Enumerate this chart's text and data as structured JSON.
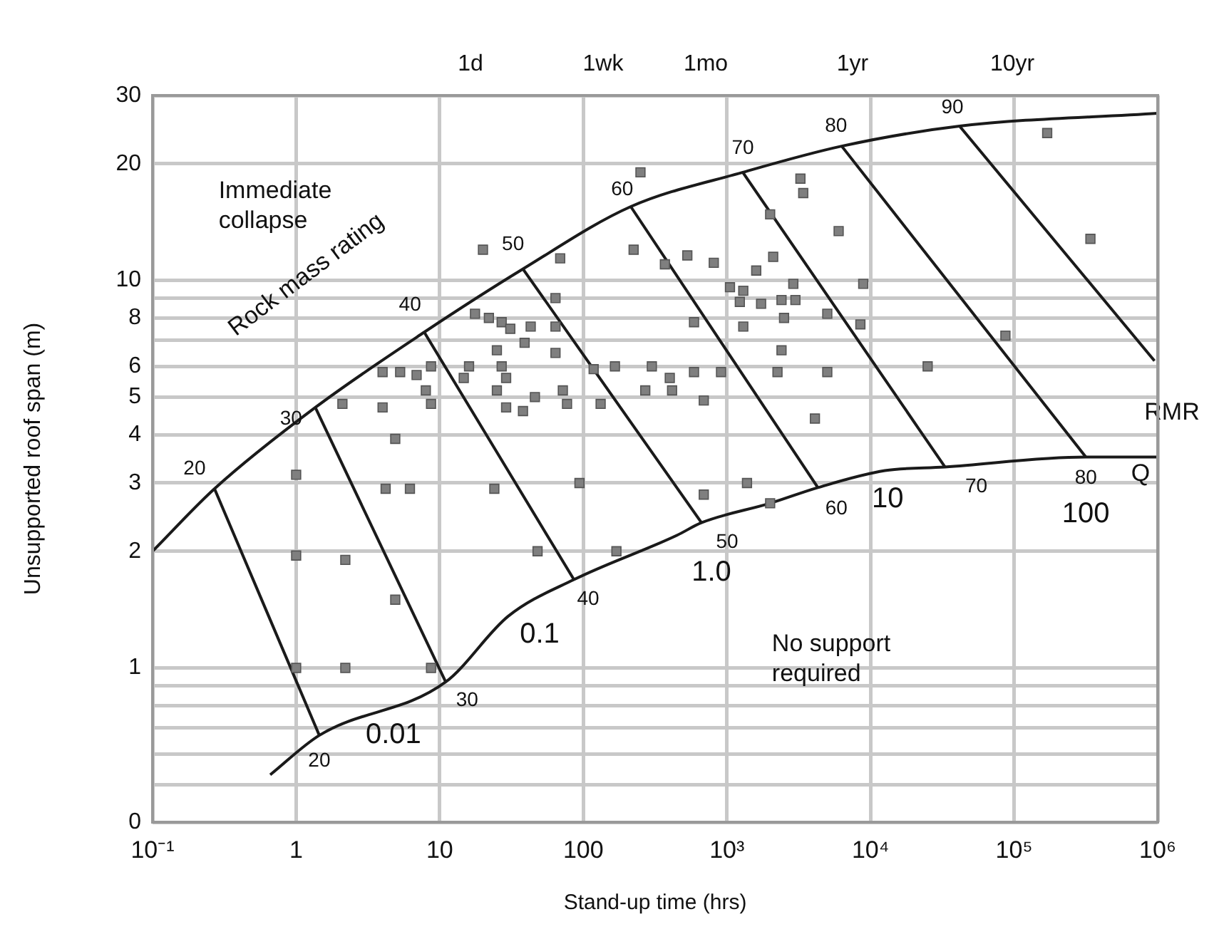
{
  "chart_data": {
    "type": "scatter",
    "xlabel": "Stand-up time (hrs)",
    "ylabel": "Unsupported roof span (m)",
    "log": "xy",
    "grid": true,
    "legend": false,
    "marker": "square",
    "xlim": [
      0.1,
      1000000
    ],
    "xticks": [
      {
        "value": 0.1,
        "label": "10⁻¹"
      },
      1,
      10,
      100,
      {
        "value": 1000,
        "label": "10³"
      },
      {
        "value": 10000,
        "label": "10⁴"
      },
      {
        "value": 100000,
        "label": "10⁵"
      },
      {
        "value": 1000000,
        "label": "10⁶"
      }
    ],
    "ylim": [
      0.4,
      30
    ],
    "yticks": [
      30,
      20,
      10,
      {
        "value": 9,
        "label": null
      },
      8,
      {
        "value": 7,
        "label": null
      },
      6,
      5,
      4,
      3,
      2,
      1,
      {
        "value": 0.9,
        "label": null
      },
      {
        "value": 0.8,
        "label": null
      },
      {
        "value": 0.7,
        "label": null
      },
      {
        "value": 0.6,
        "label": null
      },
      {
        "value": 0.5,
        "label": null
      },
      {
        "value": 0.4,
        "label": "0"
      }
    ],
    "series": [
      {
        "color": "#7f7f7f",
        "x": [
          250,
          20,
          69,
          224,
          370,
          64,
          17.6,
          22,
          27,
          31,
          43,
          39,
          64,
          25,
          64,
          16,
          8.7,
          4,
          5.3,
          6.9,
          14.7,
          27,
          29,
          8,
          25,
          8.7,
          29,
          38,
          46,
          72,
          77,
          118,
          166,
          132,
          2.1,
          4,
          4.9,
          300,
          270,
          400,
          3250,
          3400,
          170000,
          2000,
          6000,
          340000,
          530,
          810,
          2100,
          1600,
          1050,
          1300,
          1230,
          1730,
          2400,
          2900,
          3000,
          8900,
          590,
          1300,
          2500,
          5000,
          8500,
          87000,
          2400,
          2250,
          415,
          590,
          910,
          5000,
          25000,
          690,
          4100,
          1,
          4.2,
          6.2,
          24,
          94,
          1,
          2.2,
          48,
          170,
          4.9,
          1,
          2.2,
          8.7,
          690,
          1380,
          2000
        ],
        "values": [
          19,
          12,
          11.4,
          12,
          11,
          9,
          8.2,
          8,
          7.8,
          7.5,
          7.6,
          6.9,
          7.6,
          6.6,
          6.5,
          6,
          6,
          5.8,
          5.8,
          5.7,
          5.6,
          6,
          5.6,
          5.2,
          5.2,
          4.8,
          4.7,
          4.6,
          5,
          5.2,
          4.8,
          5.9,
          6,
          4.8,
          4.8,
          4.7,
          3.9,
          6,
          5.2,
          5.6,
          18.3,
          16.8,
          24,
          14.8,
          13.4,
          12.8,
          11.6,
          11.1,
          11.5,
          10.6,
          9.6,
          9.4,
          8.8,
          8.7,
          8.9,
          9.8,
          8.9,
          9.8,
          7.8,
          7.6,
          8,
          8.2,
          7.7,
          7.2,
          6.6,
          5.8,
          5.2,
          5.8,
          5.8,
          5.8,
          6,
          4.9,
          4.4,
          3.15,
          2.9,
          2.9,
          2.9,
          3,
          1.95,
          1.9,
          2,
          2,
          1.5,
          1,
          1,
          1,
          2.8,
          3,
          2.66
        ]
      },
      {
        "type": "line",
        "color": "#1a1a1a",
        "marker": "none",
        "x": [
          0.1,
          0.27,
          1.36,
          7.8,
          38,
          214,
          1290,
          6300,
          41700,
          1000000
        ],
        "values": [
          2,
          2.9,
          4.7,
          7.35,
          10.7,
          15.5,
          19,
          22.2,
          25,
          27
        ]
      },
      {
        "type": "line",
        "color": "#1a1a1a",
        "marker": "none",
        "x": [
          0.66,
          1.45,
          11,
          30,
          86,
          450,
          665,
          2000,
          4300,
          12600,
          33000,
          316000,
          1000000
        ],
        "values": [
          0.53,
          0.67,
          0.92,
          1.36,
          1.69,
          2.2,
          2.37,
          2.66,
          2.92,
          3.23,
          3.3,
          3.5,
          3.5
        ]
      },
      {
        "type": "line",
        "color": "#1a1a1a",
        "marker": "none",
        "x": [
          0.27,
          1.45
        ],
        "values": [
          2.9,
          0.67
        ]
      },
      {
        "type": "line",
        "color": "#1a1a1a",
        "marker": "none",
        "x": [
          1.36,
          11
        ],
        "values": [
          4.7,
          0.92
        ]
      },
      {
        "type": "line",
        "color": "#1a1a1a",
        "marker": "none",
        "x": [
          7.8,
          86
        ],
        "values": [
          7.35,
          1.69
        ]
      },
      {
        "type": "line",
        "color": "#1a1a1a",
        "marker": "none",
        "x": [
          38,
          665
        ],
        "values": [
          10.7,
          2.37
        ]
      },
      {
        "type": "line",
        "color": "#1a1a1a",
        "marker": "none",
        "x": [
          214,
          4300
        ],
        "values": [
          15.5,
          2.92
        ]
      },
      {
        "type": "line",
        "color": "#1a1a1a",
        "marker": "none",
        "x": [
          1290,
          33000
        ],
        "values": [
          19,
          3.3
        ]
      },
      {
        "type": "line",
        "color": "#1a1a1a",
        "marker": "none",
        "x": [
          6300,
          316000
        ],
        "values": [
          22.2,
          3.5
        ]
      },
      {
        "type": "line",
        "color": "#1a1a1a",
        "marker": "none",
        "x": [
          41700,
          950000
        ],
        "values": [
          25,
          6.2
        ]
      }
    ],
    "annotations": [
      "Immediate collapse",
      "Rock mass rating",
      "No support required",
      "RMR",
      "Q",
      "1d",
      "1wk",
      "1mo",
      "1yr",
      "10yr",
      {
        "text": "20",
        "x": 0.27,
        "y": 2.9
      },
      {
        "text": "30",
        "x": 1.36,
        "y": 4.7
      },
      {
        "text": "40",
        "x": 7.8,
        "y": 7.35
      },
      {
        "text": "50",
        "x": 38,
        "y": 10.7
      },
      {
        "text": "60",
        "x": 214,
        "y": 15.5
      },
      {
        "text": "70",
        "x": 1290,
        "y": 19
      },
      {
        "text": "80",
        "x": 6300,
        "y": 22.2
      },
      {
        "text": "90",
        "x": 41700,
        "y": 25
      },
      {
        "text": "20",
        "x": 1.45,
        "y": 0.67
      },
      {
        "text": "30",
        "x": 11,
        "y": 0.92
      },
      {
        "text": "40",
        "x": 86,
        "y": 1.69
      },
      {
        "text": "50",
        "x": 665,
        "y": 2.37
      },
      {
        "text": "60",
        "x": 4300,
        "y": 2.92
      },
      {
        "text": "70",
        "x": 33000,
        "y": 3.3
      },
      {
        "text": "80",
        "x": 316000,
        "y": 3.5
      },
      {
        "text": "0.01",
        "x": 1.45,
        "y": 0.67
      },
      {
        "text": "0.1",
        "x": 30,
        "y": 1.36
      },
      {
        "text": "1.0",
        "x": 665,
        "y": 2.37
      },
      {
        "text": "10",
        "x": 12600,
        "y": 3.23
      },
      {
        "text": "100",
        "x": 316000,
        "y": 3.5
      }
    ]
  }
}
